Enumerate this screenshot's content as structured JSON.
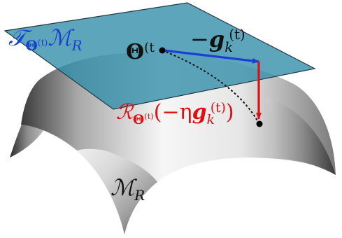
{
  "labels": {
    "tangent_space": {
      "script_T": "𝒯",
      "theta": "Θ",
      "t_sup": "(t)",
      "script_M": "ℳ",
      "R_sub": "R"
    },
    "point": {
      "theta": "Θ",
      "t_sup": "(t"
    },
    "gradient": {
      "minus": "−",
      "g": "g",
      "k_sub": "k",
      "t_sup": "(t)"
    },
    "retraction": {
      "script_R": "ℛ",
      "theta": "Θ",
      "t_sup": "(t)",
      "open": "(−η",
      "g": "g",
      "k_sub": "k",
      "t_sup2": "(t)",
      "close": ")"
    },
    "manifold": {
      "script_M": "ℳ",
      "R_sub": "R"
    }
  },
  "colors": {
    "plane_fill": "#2f8ca8",
    "plane_edge": "#1f3a45",
    "gradient_arrow": "#1a3fd6",
    "retraction_arrow": "#e01010",
    "tangent_label": "#1a3fd6",
    "retraction_label": "#e01010",
    "text_dark": "#111111"
  }
}
